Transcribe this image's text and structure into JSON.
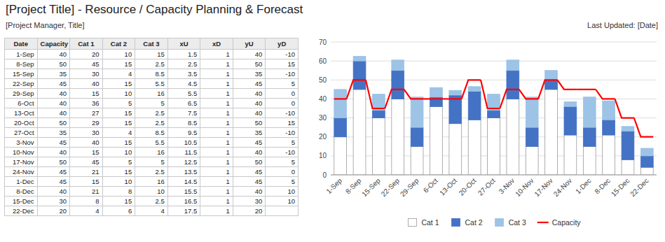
{
  "chart_data": [
    {
      "type": "bar",
      "stacked": true,
      "title": "[Project Title] - Resource / Capacity Planning & Forecast",
      "subtitle": "[Project Manager, Title]",
      "annotations": [
        "Last Updated: [Date]"
      ],
      "categories": [
        "1-Sep",
        "8-Sep",
        "15-Sep",
        "22-Sep",
        "29-Sep",
        "6-Oct",
        "13-Oct",
        "20-Oct",
        "27-Oct",
        "3-Nov",
        "10-Nov",
        "17-Nov",
        "24-Nov",
        "1-Dec",
        "8-Dec",
        "15-Dec",
        "22-Dec"
      ],
      "series": [
        {
          "name": "Cat 1",
          "color": "#FFFFFF",
          "values": [
            20,
            45,
            30,
            40,
            15,
            36,
            27,
            29,
            30,
            40,
            15,
            45,
            21,
            15,
            21,
            8,
            4
          ]
        },
        {
          "name": "Cat 2",
          "color": "#4472C4",
          "values": [
            10,
            15,
            4,
            15,
            10,
            5,
            15,
            15,
            4,
            15,
            10,
            5,
            15,
            10,
            8,
            15,
            6
          ]
        },
        {
          "name": "Cat 3",
          "color": "#9DC3E6",
          "values": [
            15,
            2.5,
            8.5,
            5.5,
            16,
            5,
            2.5,
            2.5,
            8.5,
            5.5,
            16,
            5,
            2.5,
            16,
            10,
            2.5,
            4
          ]
        },
        {
          "name": "Capacity",
          "type": "line",
          "line_style": "step",
          "color": "#FF0000",
          "values": [
            40,
            50,
            35,
            45,
            40,
            40,
            40,
            50,
            35,
            45,
            40,
            50,
            45,
            45,
            40,
            30,
            20
          ]
        }
      ],
      "ylim": [
        0,
        70
      ],
      "yticks": [
        0,
        10,
        20,
        30,
        40,
        50,
        60,
        70
      ],
      "grid": true,
      "legend": "bottom"
    },
    {
      "type": "table",
      "columns": [
        {
          "name": "Date",
          "values": [
            "1-Sep",
            "8-Sep",
            "15-Sep",
            "22-Sep",
            "29-Sep",
            "6-Oct",
            "13-Oct",
            "20-Oct",
            "27-Oct",
            "3-Nov",
            "10-Nov",
            "17-Nov",
            "24-Nov",
            "1-Dec",
            "8-Dec",
            "15-Dec",
            "22-Dec"
          ]
        },
        {
          "name": "Capacity",
          "values": [
            40,
            50,
            35,
            45,
            40,
            40,
            40,
            50,
            35,
            45,
            40,
            50,
            45,
            45,
            40,
            30,
            20
          ]
        },
        {
          "name": "Cat 1",
          "values": [
            20,
            45,
            30,
            40,
            15,
            36,
            27,
            29,
            30,
            40,
            15,
            45,
            21,
            15,
            21,
            8,
            4
          ]
        },
        {
          "name": "Cat 2",
          "values": [
            10,
            15,
            4,
            15,
            10,
            5,
            15,
            15,
            4,
            15,
            10,
            5,
            15,
            10,
            8,
            15,
            6
          ]
        },
        {
          "name": "Cat 3",
          "values": [
            15,
            2.5,
            8.5,
            5.5,
            16,
            5,
            2.5,
            2.5,
            8.5,
            5.5,
            16,
            5,
            2.5,
            16,
            10,
            2.5,
            4
          ]
        },
        {
          "name": "xU",
          "values": [
            1.5,
            2.5,
            3.5,
            4.5,
            5.5,
            6.5,
            7.5,
            8.5,
            9.5,
            10.5,
            11.5,
            12.5,
            13.5,
            14.5,
            15.5,
            16.5,
            17.5
          ]
        },
        {
          "name": "xD",
          "values": [
            1,
            1,
            1,
            1,
            1,
            1,
            1,
            1,
            1,
            1,
            1,
            1,
            1,
            1,
            1,
            1,
            1
          ]
        },
        {
          "name": "yU",
          "values": [
            40,
            50,
            35,
            45,
            40,
            40,
            40,
            50,
            35,
            45,
            40,
            50,
            45,
            45,
            40,
            30,
            20
          ]
        },
        {
          "name": "yD",
          "values": [
            -10,
            15,
            -10,
            5,
            0,
            0,
            -10,
            15,
            -10,
            5,
            -10,
            5,
            0,
            5,
            10,
            10,
            null
          ]
        }
      ]
    }
  ]
}
